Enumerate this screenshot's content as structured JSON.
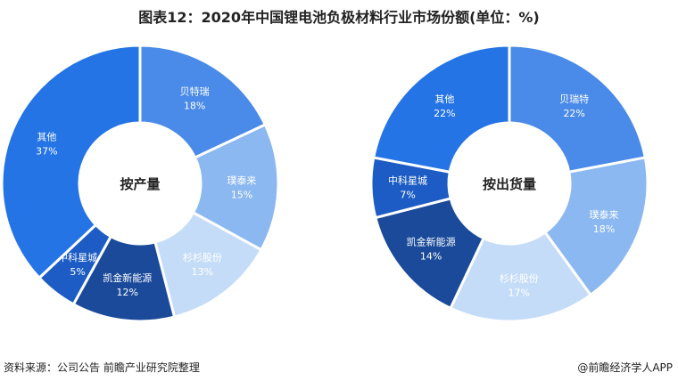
{
  "title": "图表12：2020年中国锂电池负极材料行业市场份额(单位：%)",
  "source": "资料来源：公司公告 前瞻产业研究院整理",
  "credit": "@前瞻经济学人APP",
  "chart_data": [
    {
      "type": "pie",
      "donut": true,
      "center_label": "按产量",
      "slices": [
        {
          "name": "贝特瑞",
          "value": 18,
          "label": "18%",
          "color": "#4a8ae8"
        },
        {
          "name": "璞泰来",
          "value": 15,
          "label": "15%",
          "color": "#8bb8f0"
        },
        {
          "name": "杉杉股份",
          "value": 13,
          "label": "13%",
          "color": "#c5dcf8"
        },
        {
          "name": "凯金新能源",
          "value": 12,
          "label": "12%",
          "color": "#1a4a99"
        },
        {
          "name": "中科星城",
          "value": 5,
          "label": "5%",
          "color": "#1c5cc4"
        },
        {
          "name": "其他",
          "value": 37,
          "label": "37%",
          "color": "#2474e6"
        }
      ]
    },
    {
      "type": "pie",
      "donut": true,
      "center_label": "按出货量",
      "slices": [
        {
          "name": "贝瑞特",
          "value": 22,
          "label": "22%",
          "color": "#4a8ae8"
        },
        {
          "name": "璞泰来",
          "value": 18,
          "label": "18%",
          "color": "#8bb8f0"
        },
        {
          "name": "杉杉股份",
          "value": 17,
          "label": "17%",
          "color": "#c5dcf8"
        },
        {
          "name": "凯金新能源",
          "value": 14,
          "label": "14%",
          "color": "#1a4a99"
        },
        {
          "name": "中科星城",
          "value": 7,
          "label": "7%",
          "color": "#1c5cc4"
        },
        {
          "name": "其他",
          "value": 22,
          "label": "22%",
          "color": "#2474e6"
        }
      ]
    }
  ]
}
